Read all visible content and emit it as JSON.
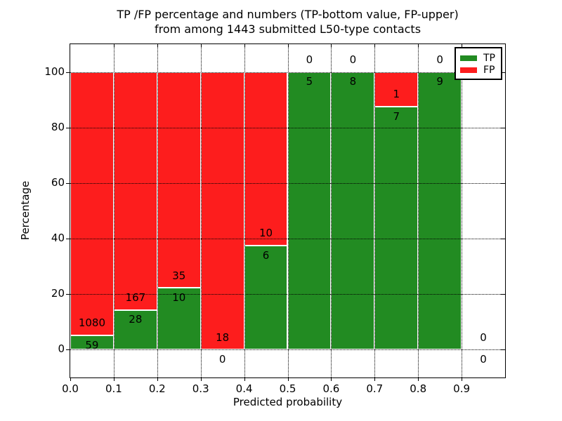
{
  "chart_data": {
    "type": "bar",
    "stacked": true,
    "title_line1": "TP /FP percentage and numbers (TP-bottom value, FP-upper)",
    "title_line2": "from among 1443 submitted L50-type contacts",
    "xlabel": "Predicted probability",
    "ylabel": "Percentage",
    "total_contacts": 1443,
    "xlim": [
      0.0,
      1.0
    ],
    "ylim": [
      -10,
      110
    ],
    "x_tick_values": [
      0.0,
      0.1,
      0.2,
      0.3,
      0.4,
      0.5,
      0.6,
      0.7,
      0.8,
      0.9
    ],
    "x_tick_labels": [
      "0.0",
      "0.1",
      "0.2",
      "0.3",
      "0.4",
      "0.5",
      "0.6",
      "0.7",
      "0.8",
      "0.9"
    ],
    "y_tick_values": [
      0,
      20,
      40,
      60,
      80,
      100
    ],
    "y_tick_labels": [
      "0",
      "20",
      "40",
      "60",
      "80",
      "100"
    ],
    "grid": "dotted-black-both-axes",
    "legend": {
      "position": "upper right",
      "entries": [
        {
          "label": "TP",
          "color": "#228B22"
        },
        {
          "label": "FP",
          "color": "#FD1D1D"
        }
      ]
    },
    "bins": [
      {
        "range": [
          0.0,
          0.1
        ],
        "tp_count": 59,
        "fp_count": 1080,
        "tp_pct": 5.18,
        "has_bar": true
      },
      {
        "range": [
          0.1,
          0.2
        ],
        "tp_count": 28,
        "fp_count": 167,
        "tp_pct": 14.36,
        "has_bar": true
      },
      {
        "range": [
          0.2,
          0.3
        ],
        "tp_count": 10,
        "fp_count": 35,
        "tp_pct": 22.22,
        "has_bar": true
      },
      {
        "range": [
          0.3,
          0.4
        ],
        "tp_count": 0,
        "fp_count": 18,
        "tp_pct": 0,
        "has_bar": true
      },
      {
        "range": [
          0.4,
          0.5
        ],
        "tp_count": 6,
        "fp_count": 10,
        "tp_pct": 37.5,
        "has_bar": true
      },
      {
        "range": [
          0.5,
          0.6
        ],
        "tp_count": 5,
        "fp_count": 0,
        "tp_pct": 100,
        "has_bar": true
      },
      {
        "range": [
          0.6,
          0.7
        ],
        "tp_count": 8,
        "fp_count": 0,
        "tp_pct": 100,
        "has_bar": true
      },
      {
        "range": [
          0.7,
          0.8
        ],
        "tp_count": 7,
        "fp_count": 1,
        "tp_pct": 87.5,
        "has_bar": true
      },
      {
        "range": [
          0.8,
          0.9
        ],
        "tp_count": 9,
        "fp_count": 0,
        "tp_pct": 100,
        "has_bar": true
      },
      {
        "range": [
          0.9,
          1.0
        ],
        "tp_count": 0,
        "fp_count": 0,
        "tp_pct": 0,
        "has_bar": false
      }
    ],
    "colors": {
      "tp": "#228B22",
      "fp": "#FD1D1D",
      "bar_edge": "#FFFFFF",
      "grid": "#000000",
      "text": "#000000",
      "background": "#FFFFFF"
    },
    "label_offsets": {
      "tp_below_boundary": 3.5,
      "fp_above_boundary": 4.5
    }
  }
}
